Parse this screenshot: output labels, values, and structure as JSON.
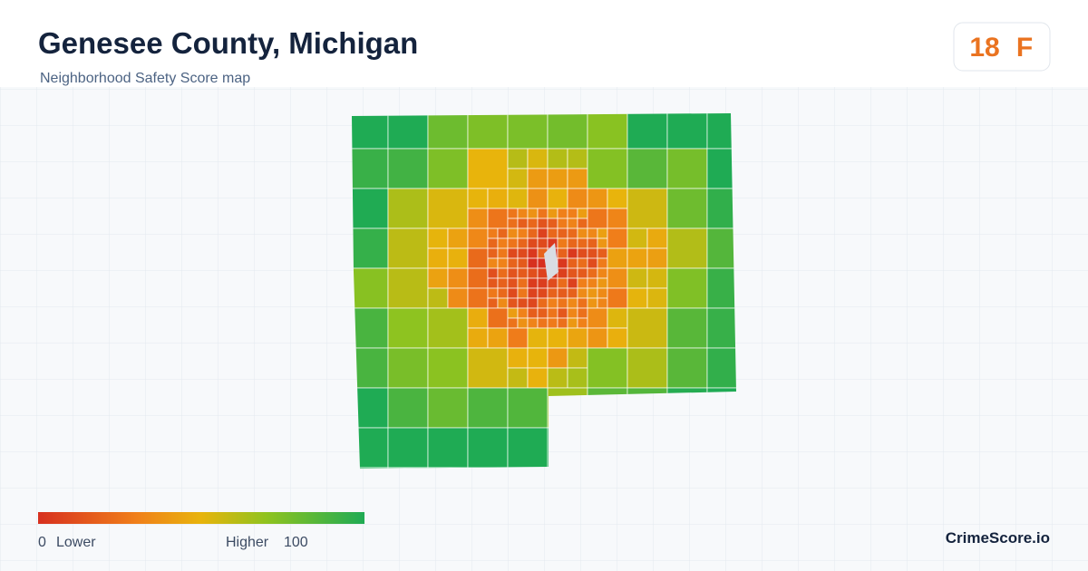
{
  "header": {
    "title": "Genesee County, Michigan",
    "subtitle": "Neighborhood Safety Score map"
  },
  "badge": {
    "score": 18,
    "grade": "F"
  },
  "legend": {
    "min": 0,
    "min_text": "Lower",
    "max_text": "Higher",
    "max": 100
  },
  "brand": "CrimeScore.io"
}
